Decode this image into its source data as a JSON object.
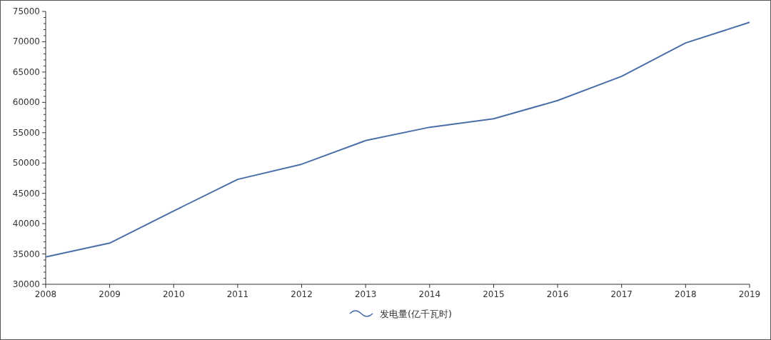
{
  "chart_data": {
    "type": "line",
    "x": [
      2008,
      2009,
      2010,
      2011,
      2012,
      2013,
      2014,
      2015,
      2016,
      2017,
      2018,
      2019
    ],
    "series": [
      {
        "name": "发电量(亿千瓦时)",
        "color": "#4a6ea8",
        "values": [
          34500,
          36800,
          42100,
          47300,
          49800,
          53700,
          55900,
          57300,
          60300,
          64300,
          69800,
          73200
        ]
      }
    ],
    "xlim": [
      2008,
      2019
    ],
    "xticks": [
      2008,
      2009,
      2010,
      2011,
      2012,
      2013,
      2014,
      2015,
      2016,
      2017,
      2018,
      2019
    ],
    "ylim": [
      30000,
      75000
    ],
    "yticks": [
      30000,
      35000,
      40000,
      45000,
      50000,
      55000,
      60000,
      65000,
      70000,
      75000
    ],
    "legend": "bottom"
  }
}
